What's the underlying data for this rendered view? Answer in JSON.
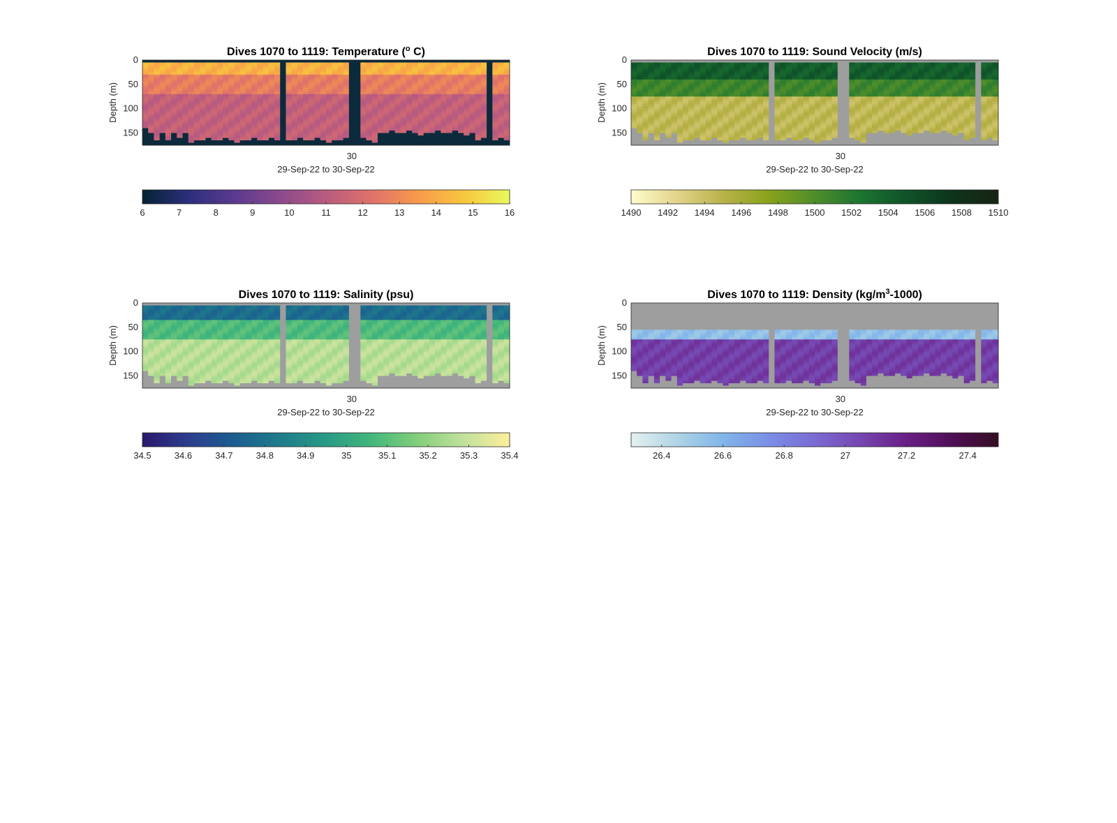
{
  "chart_data": [
    {
      "type": "heatmap",
      "id": "temperature",
      "title": "Dives 1070 to 1119: Temperature (° C)",
      "title_parts": {
        "pre": "Dives 1070 to 1119: Temperature (",
        "sup": "o",
        "post": " C)"
      },
      "ylabel": "Depth (m)",
      "xlabel": "29-Sep-22 to 30-Sep-22",
      "xtick_labels": [
        "30"
      ],
      "yticks": [
        0,
        50,
        100,
        150
      ],
      "ylim": [
        0,
        175
      ],
      "y_reversed": true,
      "colorbar": {
        "min": 6,
        "max": 16,
        "ticks": [
          6,
          7,
          8,
          9,
          10,
          11,
          12,
          13,
          14,
          15,
          16
        ],
        "colormap": "thermal"
      },
      "mask_color": "#0b2a3c",
      "gap_columns": [
        24,
        36,
        37,
        60
      ],
      "profile_layers": [
        {
          "depth_to": 30,
          "value": 14.2
        },
        {
          "depth_to": 70,
          "value": 12.6
        },
        {
          "depth_to": 175,
          "value": 11.3
        }
      ]
    },
    {
      "type": "heatmap",
      "id": "sound-velocity",
      "title": "Dives 1070 to 1119: Sound Velocity (m/s)",
      "title_parts": {
        "pre": "Dives 1070 to 1119: Sound Velocity (m/s)",
        "sup": "",
        "post": ""
      },
      "ylabel": "Depth (m)",
      "xlabel": "29-Sep-22 to 30-Sep-22",
      "xtick_labels": [
        "30"
      ],
      "yticks": [
        0,
        50,
        100,
        150
      ],
      "ylim": [
        0,
        175
      ],
      "y_reversed": true,
      "colorbar": {
        "min": 1490,
        "max": 1510,
        "ticks": [
          1490,
          1492,
          1494,
          1496,
          1498,
          1500,
          1502,
          1504,
          1506,
          1508,
          1510
        ],
        "colormap": "speed"
      },
      "mask_color": "#9e9e9e",
      "gap_columns": [
        24,
        36,
        37,
        60
      ],
      "profile_layers": [
        {
          "depth_to": 40,
          "value": 1504.2
        },
        {
          "depth_to": 75,
          "value": 1500.8
        },
        {
          "depth_to": 175,
          "value": 1494.6
        }
      ]
    },
    {
      "type": "heatmap",
      "id": "salinity",
      "title": "Dives 1070 to 1119: Salinity (psu)",
      "title_parts": {
        "pre": "Dives 1070 to 1119: Salinity (psu)",
        "sup": "",
        "post": ""
      },
      "ylabel": "Depth (m)",
      "xlabel": "29-Sep-22 to 30-Sep-22",
      "xtick_labels": [
        "30"
      ],
      "yticks": [
        0,
        50,
        100,
        150
      ],
      "ylim": [
        0,
        175
      ],
      "y_reversed": true,
      "colorbar": {
        "min": 34.5,
        "max": 35.4,
        "ticks": [
          34.5,
          34.6,
          34.7,
          34.8,
          34.9,
          35,
          35.1,
          35.2,
          35.3,
          35.4
        ],
        "colormap": "haline"
      },
      "mask_color": "#9e9e9e",
      "gap_columns": [
        24,
        36,
        37,
        60
      ],
      "profile_layers": [
        {
          "depth_to": 35,
          "value": 34.78
        },
        {
          "depth_to": 75,
          "value": 35.08
        },
        {
          "depth_to": 175,
          "value": 35.27
        }
      ]
    },
    {
      "type": "heatmap",
      "id": "density",
      "title": "Dives 1070 to 1119: Density (kg/m³-1000)",
      "title_parts": {
        "pre": "Dives 1070 to 1119: Density (kg/m",
        "sup": "3",
        "post": "-1000)"
      },
      "ylabel": "Depth (m)",
      "xlabel": "29-Sep-22 to 30-Sep-22",
      "xtick_labels": [
        "30"
      ],
      "yticks": [
        0,
        50,
        100,
        150
      ],
      "ylim": [
        0,
        175
      ],
      "y_reversed": true,
      "colorbar": {
        "min": 26.3,
        "max": 27.5,
        "ticks": [
          26.4,
          26.6,
          26.8,
          27,
          27.2,
          27.4
        ],
        "colormap": "dense"
      },
      "mask_color": "#9e9e9e",
      "gap_columns": [
        24,
        36,
        37,
        60
      ],
      "profile_layers": [
        {
          "depth_to": 55,
          "value": null
        },
        {
          "depth_to": 75,
          "value": 26.55
        },
        {
          "depth_to": 175,
          "value": 27.08
        }
      ]
    }
  ],
  "colormaps": {
    "thermal": [
      "#042333",
      "#2c2e7c",
      "#5a3a8f",
      "#8b4a8c",
      "#b95b80",
      "#e0726a",
      "#f79a4b",
      "#f8c63f",
      "#e8fa5b"
    ],
    "speed": [
      "#fffdcd",
      "#e2d48a",
      "#b9b24a",
      "#89a21b",
      "#4e8d2b",
      "#1c7431",
      "#0f5229",
      "#0e341c",
      "#172313"
    ],
    "haline": [
      "#2a186c",
      "#2c3d8e",
      "#1b5e90",
      "#1f7c8b",
      "#289a85",
      "#44b77c",
      "#84cf7b",
      "#c2e19c",
      "#fdef9a"
    ],
    "dense": [
      "#e6f1f1",
      "#aed4e5",
      "#82b5ea",
      "#7a8fe6",
      "#7a6bd3",
      "#7646b0",
      "#691f86",
      "#4f0e56",
      "#360e24"
    ]
  }
}
